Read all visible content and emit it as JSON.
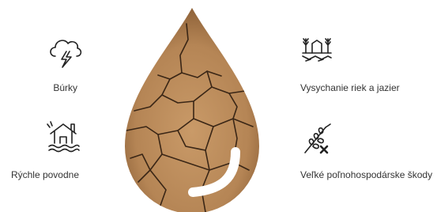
{
  "items": [
    {
      "label": "Búrky"
    },
    {
      "label": "Rýchle povodne"
    },
    {
      "label": "Vysychanie riek a jazier"
    },
    {
      "label": "Veľké poľnohospodárske škody"
    }
  ]
}
